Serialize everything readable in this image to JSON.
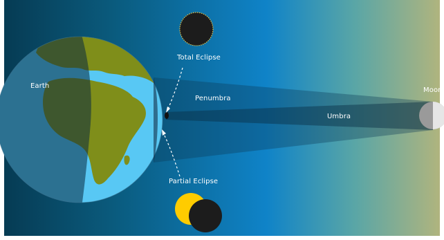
{
  "colors": {
    "space_dark": "#063a52",
    "space_mid": "#0e7cc4",
    "space_light": "#a7b482",
    "land_lit": "#7f8e1a",
    "ocean_lit": "#58c8f4",
    "land_shadow": "#3f5a45",
    "ocean_shadow": "#3a6f93",
    "eclipse_dark": "#1c1c1c",
    "sun_yellow": "#ffcc00",
    "moon_lit": "#e6e6e6",
    "moon_dark": "#9a9a9a"
  },
  "labels": {
    "earth": "Earth",
    "moon": "Moon",
    "penumbra": "Penumbra",
    "umbra": "Umbra",
    "total_eclipse": "Total Eclipse",
    "partial_eclipse": "Partial Eclipse"
  },
  "icons": [
    "total-eclipse-icon",
    "partial-eclipse-icon",
    "earth-globe",
    "moon-disc"
  ]
}
